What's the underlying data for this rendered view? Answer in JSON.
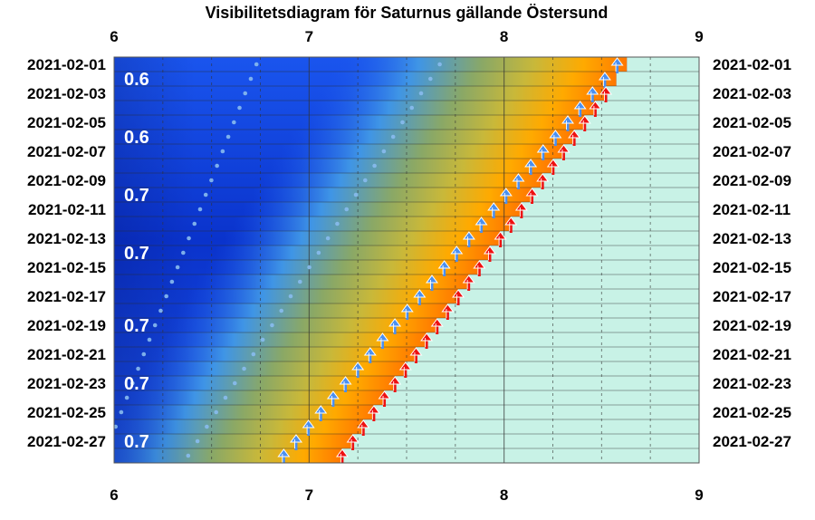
{
  "chart_data": {
    "type": "heatmap",
    "title": "Visibilitetsdiagram för Saturnus gällande Östersund",
    "x_range": [
      6,
      9
    ],
    "x_ticks": [
      "6",
      "7",
      "8",
      "9"
    ],
    "x_minor_step": 0.25,
    "start_date": "2021-02-01",
    "days": 28,
    "row_labels_left": [
      "2021-02-01",
      "2021-02-03",
      "2021-02-05",
      "2021-02-07",
      "2021-02-09",
      "2021-02-11",
      "2021-02-13",
      "2021-02-15",
      "2021-02-17",
      "2021-02-19",
      "2021-02-21",
      "2021-02-23",
      "2021-02-25",
      "2021-02-27"
    ],
    "row_labels_right": [
      "2021-02-01",
      "2021-02-03",
      "2021-02-05",
      "2021-02-07",
      "2021-02-09",
      "2021-02-11",
      "2021-02-13",
      "2021-02-15",
      "2021-02-17",
      "2021-02-19",
      "2021-02-21",
      "2021-02-23",
      "2021-02-25",
      "2021-02-27"
    ],
    "magnitude_labels": [
      {
        "date": "2021-02-02",
        "text": "0.6"
      },
      {
        "date": "2021-02-06",
        "text": "0.6"
      },
      {
        "date": "2021-02-10",
        "text": "0.7"
      },
      {
        "date": "2021-02-14",
        "text": "0.7"
      },
      {
        "date": "2021-02-19",
        "text": "0.7"
      },
      {
        "date": "2021-02-23",
        "text": "0.7"
      },
      {
        "date": "2021-02-27",
        "text": "0.7"
      }
    ],
    "planet_rise_hour": {
      "first": 8.58,
      "last": 6.87
    },
    "sunrise_hour": {
      "first": 8.63,
      "last": 7.17
    },
    "dawn_start_hour": {
      "first": 7.7,
      "last": 6.4
    },
    "dotted_track_1": {
      "first": 7.67,
      "last": 6.38
    },
    "dotted_track_2": {
      "first": 6.73,
      "last": 5.95
    },
    "colors": {
      "night_dark": "#0a33cc",
      "night": "#1a55ee",
      "twilight_blue": "#3f95e6",
      "twilight_green": "#8aa866",
      "twilight_yellow": "#c8b83a",
      "dawn_orange": "#ffaa00",
      "deep_orange": "#ff7700",
      "daylight": "#c8f2e6",
      "planet_arrow": "#4a8ff0",
      "sun_arrow": "#ee1111",
      "dots": "#88bbee"
    }
  }
}
